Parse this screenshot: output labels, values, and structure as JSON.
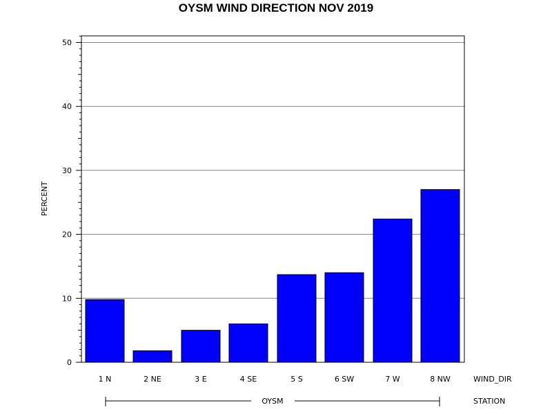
{
  "chart_data": {
    "type": "bar",
    "title": "OYSM WIND DIRECTION NOV 2019",
    "ylabel": "PERCENT",
    "xlabel": "WIND_DIR",
    "group_label": "STATION",
    "group_name": "OYSM",
    "categories": [
      "1 N",
      "2 NE",
      "3 E",
      "4 SE",
      "5 S",
      "6 SW",
      "7 W",
      "8 NW"
    ],
    "values": [
      9.8,
      1.8,
      5.0,
      6.0,
      13.7,
      14.0,
      22.4,
      27.0
    ],
    "ylim": [
      0,
      51
    ],
    "yticks": [
      0,
      10,
      20,
      30,
      40,
      50
    ],
    "grid": true,
    "bar_color": "#0000ff"
  }
}
